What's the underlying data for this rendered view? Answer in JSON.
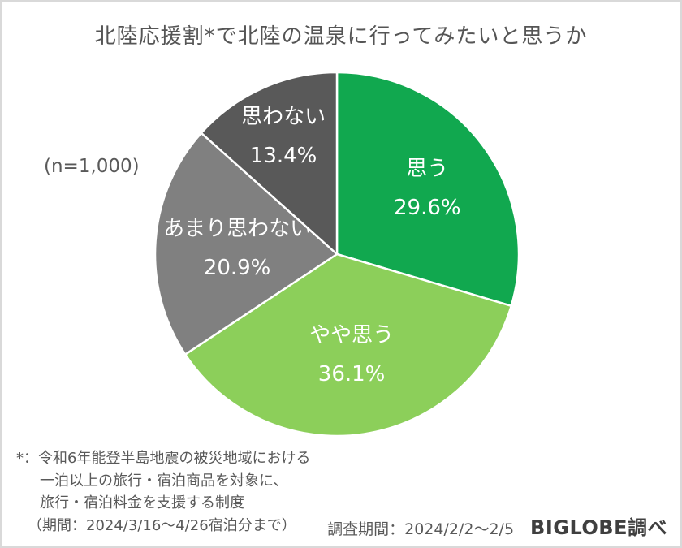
{
  "title": "北陸応援割*で北陸の温泉に行ってみたいと思うか",
  "sample_label": "(n=1,000)",
  "chart_data": {
    "type": "pie",
    "title": "北陸応援割*で北陸の温泉に行ってみたいと思うか",
    "sample_size_label": "(n=1,000)",
    "start_angle_deg": -90,
    "direction": "clockwise",
    "label_position": "inside",
    "label_text_color": "#ffffff",
    "slice_border_color": "#ffffff",
    "slices": [
      {
        "label": "思う",
        "value": 29.6,
        "color": "#11A84F",
        "label_r": 0.62
      },
      {
        "label": "やや思う",
        "value": 36.1,
        "color": "#8CCF5A",
        "label_r": 0.55
      },
      {
        "label": "あまり思わない",
        "value": 20.9,
        "color": "#808080",
        "label_r": 0.55
      },
      {
        "label": "思わない",
        "value": 13.4,
        "color": "#595959",
        "label_r": 0.72
      }
    ]
  },
  "footnote": {
    "lines": [
      "*：令和6年能登半島地震の被災地域における",
      "一泊以上の旅行・宿泊商品を対象に、",
      "旅行・宿泊料金を支援する制度",
      "（期間：2024/3/16〜4/26宿泊分まで）"
    ]
  },
  "footer": {
    "survey_period": "調査期間：2024/2/2〜2/5",
    "source": "BIGLOBE調べ"
  }
}
